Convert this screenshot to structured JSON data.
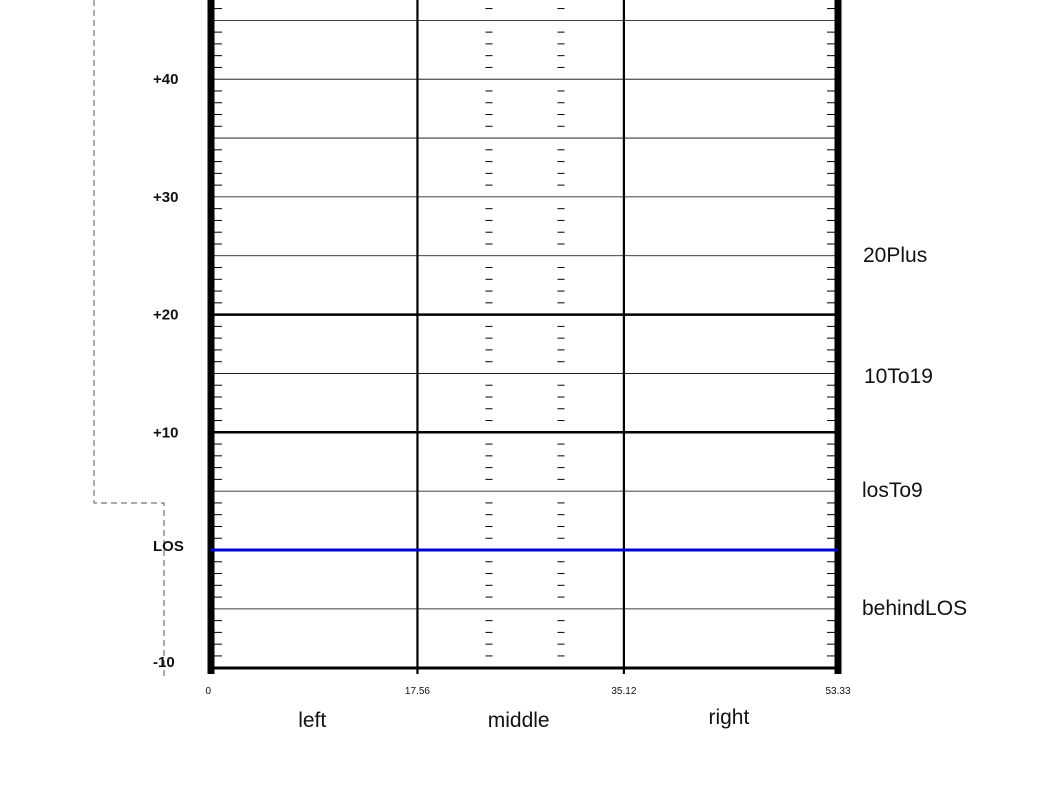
{
  "field": {
    "yard_labels": [
      {
        "text": "+40",
        "yard": 40
      },
      {
        "text": "+30",
        "yard": 30
      },
      {
        "text": "+20",
        "yard": 20
      },
      {
        "text": "+10",
        "yard": 10
      },
      {
        "text": "LOS",
        "yard": 0
      },
      {
        "text": "-10",
        "yard": -10
      }
    ],
    "width_labels": [
      {
        "text": "0",
        "value": 0
      },
      {
        "text": "17.56",
        "value": 17.56
      },
      {
        "text": "35.12",
        "value": 35.12
      },
      {
        "text": "53.33",
        "value": 53.33
      }
    ],
    "zone_labels": [
      {
        "text": "left",
        "value": 8.78
      },
      {
        "text": "middle",
        "value": 26.34
      },
      {
        "text": "right",
        "value": 44.22
      }
    ],
    "depth_labels": [
      {
        "text": "20Plus",
        "yard": 25
      },
      {
        "text": "10To19",
        "yard": 15
      },
      {
        "text": "losTo9",
        "yard": 5
      },
      {
        "text": "behindLOS",
        "yard": -5
      }
    ],
    "line_of_scrimmage_color": "#0000cc",
    "line_color": "#000000"
  }
}
